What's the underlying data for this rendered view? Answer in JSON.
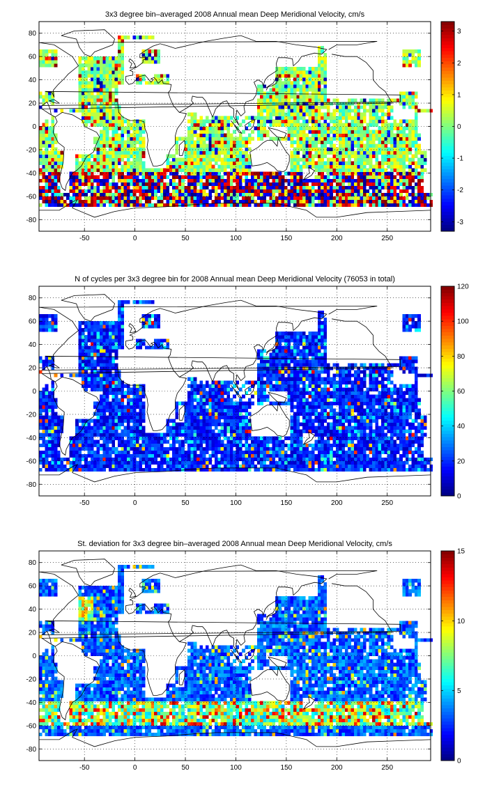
{
  "panels": [
    {
      "title": "3x3 degree bin–averaged 2008 Annual mean Deep Meridional Velocity, cm/s",
      "colorbar": {
        "min": -3.3,
        "max": 3.3,
        "ticks": [
          "-3",
          "-2",
          "-1",
          "0",
          "1",
          "2",
          "3"
        ],
        "tick_values": [
          -3,
          -2,
          -1,
          0,
          1,
          2,
          3
        ]
      },
      "field": "velocity"
    },
    {
      "title": "N of cycles per 3x3 degree bin for 2008 Annual mean Deep Meridional Velocity (76053 in total)",
      "colorbar": {
        "min": 0,
        "max": 120,
        "ticks": [
          "0",
          "20",
          "40",
          "60",
          "80",
          "100",
          "120"
        ],
        "tick_values": [
          0,
          20,
          40,
          60,
          80,
          100,
          120
        ]
      },
      "field": "count"
    },
    {
      "title": "St. deviation for 3x3 degree bin–averaged 2008 Annual mean Deep Meridional Velocity, cm/s",
      "colorbar": {
        "min": 0,
        "max": 15,
        "ticks": [
          "0",
          "5",
          "10",
          "15"
        ],
        "tick_values": [
          0,
          5,
          10,
          15
        ]
      },
      "field": "stdev"
    }
  ],
  "axes": {
    "xlim": [
      -95,
      293
    ],
    "ylim": [
      -90,
      90
    ],
    "x_ticks": [
      "-50",
      "0",
      "50",
      "100",
      "150",
      "200",
      "250"
    ],
    "x_tick_values": [
      -50,
      0,
      50,
      100,
      150,
      200,
      250
    ],
    "y_ticks": [
      "-80",
      "-60",
      "-40",
      "-20",
      "0",
      "20",
      "40",
      "60",
      "80"
    ],
    "y_tick_values": [
      -80,
      -60,
      -40,
      -20,
      0,
      20,
      40,
      60,
      80
    ],
    "grid": "dotted",
    "bin_size_degrees": 3
  },
  "colormap": "jet"
}
